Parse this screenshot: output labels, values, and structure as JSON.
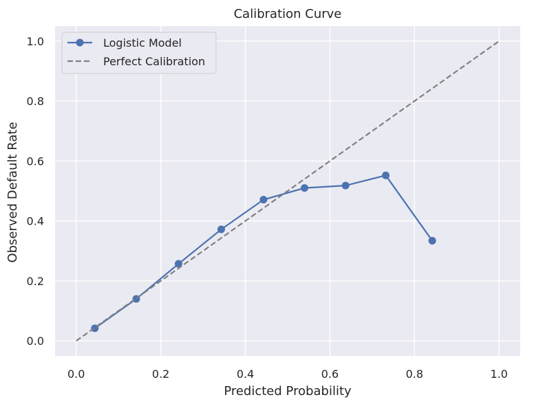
{
  "chart_data": {
    "type": "line",
    "title": "Calibration Curve",
    "xlabel": "Predicted Probability",
    "ylabel": "Observed Default Rate",
    "xlim": [
      -0.05,
      1.05
    ],
    "ylim": [
      -0.05,
      1.05
    ],
    "xticks": [
      0.0,
      0.2,
      0.4,
      0.6,
      0.8,
      1.0
    ],
    "yticks": [
      0.0,
      0.2,
      0.4,
      0.6,
      0.8,
      1.0
    ],
    "xtick_labels": [
      "0.0",
      "0.2",
      "0.4",
      "0.6",
      "0.8",
      "1.0"
    ],
    "ytick_labels": [
      "0.0",
      "0.2",
      "0.4",
      "0.6",
      "0.8",
      "1.0"
    ],
    "grid": true,
    "legend_position": "top-left",
    "series": [
      {
        "name": "Logistic Model",
        "style": "solid-line-with-circle-markers",
        "color": "#4c72b0",
        "x": [
          0.044,
          0.142,
          0.242,
          0.343,
          0.443,
          0.54,
          0.637,
          0.732,
          0.842
        ],
        "y": [
          0.042,
          0.14,
          0.257,
          0.372,
          0.471,
          0.51,
          0.518,
          0.552,
          0.334
        ]
      },
      {
        "name": "Perfect Calibration",
        "style": "dashed-line",
        "color": "#808080",
        "x": [
          0.0,
          1.0
        ],
        "y": [
          0.0,
          1.0
        ]
      }
    ],
    "colors": {
      "plot_background": "#eaeaf2",
      "grid": "#ffffff",
      "text": "#262626",
      "legend_background": "#eaeaf2",
      "legend_border": "#cccccc"
    }
  }
}
